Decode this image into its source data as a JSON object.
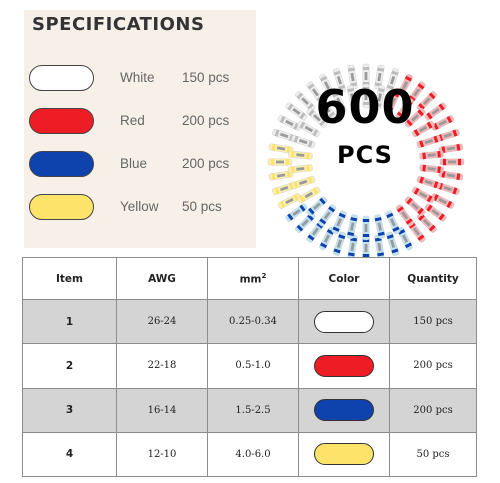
{
  "specifications": {
    "title": "SPECIFICATIONS",
    "items": [
      {
        "name": "White",
        "qty": "150 pcs",
        "color": "#ffffff"
      },
      {
        "name": "Red",
        "qty": "200 pcs",
        "color": "#ee1c25"
      },
      {
        "name": "Blue",
        "qty": "200 pcs",
        "color": "#0e43ad"
      },
      {
        "name": "Yellow",
        "qty": "50 pcs",
        "color": "#fde36a"
      }
    ]
  },
  "badge": {
    "count": "600",
    "unit": "PCS"
  },
  "table": {
    "headers": {
      "item": "Item",
      "awg": "AWG",
      "mm2_base": "mm",
      "mm2_sup": "2",
      "color": "Color",
      "quantity": "Quantity"
    },
    "rows": [
      {
        "item": "1",
        "awg": "26-24",
        "mm2": "0.25-0.34",
        "color": "#ffffff",
        "quantity": "150 pcs"
      },
      {
        "item": "2",
        "awg": "22-18",
        "mm2": "0.5-1.0",
        "color": "#ee1c25",
        "quantity": "200 pcs"
      },
      {
        "item": "3",
        "awg": "16-14",
        "mm2": "1.5-2.5",
        "color": "#0e43ad",
        "quantity": "200 pcs"
      },
      {
        "item": "4",
        "awg": "12-10",
        "mm2": "4.0-6.0",
        "color": "#fde36a",
        "quantity": "50 pcs"
      }
    ]
  }
}
